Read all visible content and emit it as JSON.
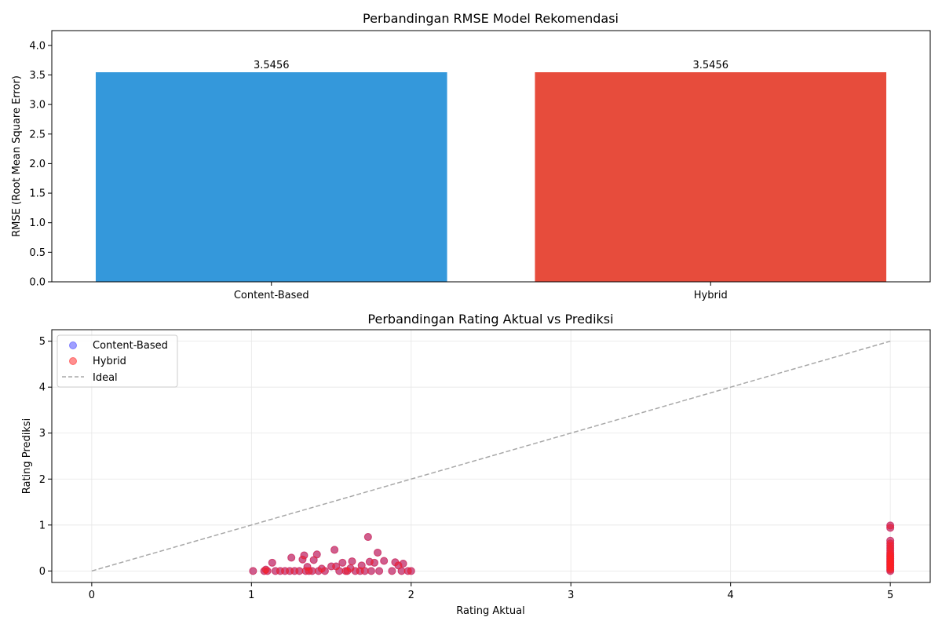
{
  "colors": {
    "content_based": "#3498db",
    "hybrid": "#e74c3c",
    "scatter_content": "#4040ff",
    "scatter_hybrid": "#ff2020",
    "ideal": "#a8a8a8"
  },
  "chart_data": [
    {
      "type": "bar",
      "title": "Perbandingan RMSE Model Rekomendasi",
      "ylabel": "RMSE (Root Mean Square Error)",
      "xlabel": "",
      "categories": [
        "Content-Based",
        "Hybrid"
      ],
      "values": [
        3.5456,
        3.5456
      ],
      "value_labels": [
        "3.5456",
        "3.5456"
      ],
      "ylim": [
        0,
        4.25
      ],
      "yticks": [
        0.0,
        0.5,
        1.0,
        1.5,
        2.0,
        2.5,
        3.0,
        3.5,
        4.0
      ],
      "ytick_labels": [
        "0.0",
        "0.5",
        "1.0",
        "1.5",
        "2.0",
        "2.5",
        "3.0",
        "3.5",
        "4.0"
      ],
      "grid": false
    },
    {
      "type": "scatter",
      "title": "Perbandingan Rating Aktual vs Prediksi",
      "xlabel": "Rating Aktual",
      "ylabel": "Rating Prediksi",
      "xlim": [
        -0.25,
        5.25
      ],
      "ylim": [
        -0.25,
        5.25
      ],
      "xticks": [
        0,
        1,
        2,
        3,
        4,
        5
      ],
      "xtick_labels": [
        "0",
        "1",
        "2",
        "3",
        "4",
        "5"
      ],
      "yticks": [
        0,
        1,
        2,
        3,
        4,
        5
      ],
      "ytick_labels": [
        "0",
        "1",
        "2",
        "3",
        "4",
        "5"
      ],
      "grid": true,
      "legend_position": "top-left",
      "legend": [
        "Content-Based",
        "Hybrid",
        "Ideal"
      ],
      "ideal_line": {
        "x": [
          0,
          5
        ],
        "y": [
          0,
          5
        ]
      },
      "series": [
        {
          "name": "Content-Based",
          "points": [
            [
              1.01,
              0.0
            ],
            [
              1.08,
              0.0
            ],
            [
              1.09,
              0.03
            ],
            [
              1.1,
              0.0
            ],
            [
              1.13,
              0.18
            ],
            [
              1.15,
              0.0
            ],
            [
              1.18,
              0.0
            ],
            [
              1.21,
              0.0
            ],
            [
              1.24,
              0.0
            ],
            [
              1.25,
              0.29
            ],
            [
              1.27,
              0.0
            ],
            [
              1.3,
              0.0
            ],
            [
              1.32,
              0.25
            ],
            [
              1.33,
              0.34
            ],
            [
              1.34,
              0.0
            ],
            [
              1.35,
              0.09
            ],
            [
              1.36,
              0.0
            ],
            [
              1.38,
              0.0
            ],
            [
              1.39,
              0.24
            ],
            [
              1.41,
              0.36
            ],
            [
              1.42,
              0.0
            ],
            [
              1.44,
              0.05
            ],
            [
              1.46,
              0.0
            ],
            [
              1.5,
              0.1
            ],
            [
              1.52,
              0.46
            ],
            [
              1.53,
              0.1
            ],
            [
              1.55,
              0.0
            ],
            [
              1.57,
              0.18
            ],
            [
              1.59,
              0.0
            ],
            [
              1.6,
              0.0
            ],
            [
              1.62,
              0.06
            ],
            [
              1.63,
              0.21
            ],
            [
              1.65,
              0.0
            ],
            [
              1.68,
              0.0
            ],
            [
              1.69,
              0.12
            ],
            [
              1.71,
              0.0
            ],
            [
              1.73,
              0.74
            ],
            [
              1.74,
              0.2
            ],
            [
              1.75,
              0.0
            ],
            [
              1.77,
              0.18
            ],
            [
              1.79,
              0.4
            ],
            [
              1.8,
              0.0
            ],
            [
              1.83,
              0.22
            ],
            [
              1.88,
              0.0
            ],
            [
              1.9,
              0.19
            ],
            [
              1.92,
              0.12
            ],
            [
              1.94,
              0.0
            ],
            [
              1.95,
              0.16
            ],
            [
              1.98,
              0.0
            ],
            [
              2.0,
              0.0
            ],
            [
              5,
              0.0
            ],
            [
              5,
              0.03
            ],
            [
              5,
              0.06
            ],
            [
              5,
              0.09
            ],
            [
              5,
              0.12
            ],
            [
              5,
              0.15
            ],
            [
              5,
              0.18
            ],
            [
              5,
              0.21
            ],
            [
              5,
              0.24
            ],
            [
              5,
              0.27
            ],
            [
              5,
              0.3
            ],
            [
              5,
              0.33
            ],
            [
              5,
              0.36
            ],
            [
              5,
              0.4
            ],
            [
              5,
              0.45
            ],
            [
              5,
              0.5
            ],
            [
              5,
              0.55
            ],
            [
              5,
              0.6
            ],
            [
              5,
              0.66
            ],
            [
              5,
              0.94
            ],
            [
              5,
              0.99
            ]
          ]
        },
        {
          "name": "Hybrid",
          "points": [
            [
              1.01,
              0.0
            ],
            [
              1.08,
              0.0
            ],
            [
              1.09,
              0.03
            ],
            [
              1.1,
              0.0
            ],
            [
              1.13,
              0.18
            ],
            [
              1.15,
              0.0
            ],
            [
              1.18,
              0.0
            ],
            [
              1.21,
              0.0
            ],
            [
              1.24,
              0.0
            ],
            [
              1.25,
              0.29
            ],
            [
              1.27,
              0.0
            ],
            [
              1.3,
              0.0
            ],
            [
              1.32,
              0.25
            ],
            [
              1.33,
              0.34
            ],
            [
              1.34,
              0.0
            ],
            [
              1.35,
              0.09
            ],
            [
              1.36,
              0.0
            ],
            [
              1.38,
              0.0
            ],
            [
              1.39,
              0.24
            ],
            [
              1.41,
              0.36
            ],
            [
              1.42,
              0.0
            ],
            [
              1.44,
              0.05
            ],
            [
              1.46,
              0.0
            ],
            [
              1.5,
              0.1
            ],
            [
              1.52,
              0.46
            ],
            [
              1.53,
              0.1
            ],
            [
              1.55,
              0.0
            ],
            [
              1.57,
              0.18
            ],
            [
              1.59,
              0.0
            ],
            [
              1.6,
              0.0
            ],
            [
              1.62,
              0.06
            ],
            [
              1.63,
              0.21
            ],
            [
              1.65,
              0.0
            ],
            [
              1.68,
              0.0
            ],
            [
              1.69,
              0.12
            ],
            [
              1.71,
              0.0
            ],
            [
              1.73,
              0.74
            ],
            [
              1.74,
              0.2
            ],
            [
              1.75,
              0.0
            ],
            [
              1.77,
              0.18
            ],
            [
              1.79,
              0.4
            ],
            [
              1.8,
              0.0
            ],
            [
              1.83,
              0.22
            ],
            [
              1.88,
              0.0
            ],
            [
              1.9,
              0.19
            ],
            [
              1.92,
              0.12
            ],
            [
              1.94,
              0.0
            ],
            [
              1.95,
              0.16
            ],
            [
              1.98,
              0.0
            ],
            [
              2.0,
              0.0
            ],
            [
              5,
              0.0
            ],
            [
              5,
              0.03
            ],
            [
              5,
              0.06
            ],
            [
              5,
              0.09
            ],
            [
              5,
              0.12
            ],
            [
              5,
              0.15
            ],
            [
              5,
              0.18
            ],
            [
              5,
              0.21
            ],
            [
              5,
              0.24
            ],
            [
              5,
              0.27
            ],
            [
              5,
              0.3
            ],
            [
              5,
              0.33
            ],
            [
              5,
              0.36
            ],
            [
              5,
              0.4
            ],
            [
              5,
              0.45
            ],
            [
              5,
              0.5
            ],
            [
              5,
              0.55
            ],
            [
              5,
              0.6
            ],
            [
              5,
              0.66
            ],
            [
              5,
              0.94
            ],
            [
              5,
              0.99
            ]
          ]
        }
      ]
    }
  ]
}
